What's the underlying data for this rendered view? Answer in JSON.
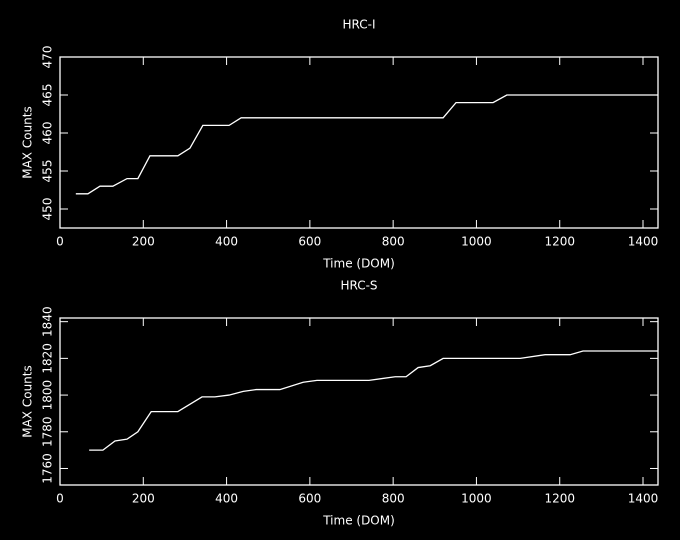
{
  "chart_data": [
    {
      "type": "line",
      "title": "HRC-I",
      "x_label": "Time (DOM)",
      "y_label": "MAX Counts",
      "color": "#ffffff",
      "x": [
        38,
        67,
        96,
        127,
        161,
        187,
        216,
        283,
        312,
        343,
        406,
        435,
        920,
        951,
        1040,
        1073,
        1436
      ],
      "values": [
        452,
        452,
        453,
        453,
        454,
        454,
        457,
        457,
        458,
        461,
        461,
        462,
        462,
        464,
        464,
        465,
        465
      ],
      "xlim": [
        0,
        1436
      ],
      "xticks": [
        0,
        200,
        400,
        600,
        800,
        1000,
        1200,
        1400
      ],
      "ylim": [
        447.5,
        470
      ],
      "yticks": [
        450,
        455,
        460,
        465,
        470
      ]
    },
    {
      "type": "line",
      "title": "HRC-S",
      "x_label": "Time (DOM)",
      "y_label": "MAX Counts",
      "color": "#ffffff",
      "x": [
        70,
        103,
        132,
        161,
        187,
        219,
        283,
        341,
        372,
        406,
        440,
        471,
        528,
        584,
        617,
        742,
        805,
        831,
        860,
        889,
        920,
        1105,
        1165,
        1225,
        1256,
        1436
      ],
      "values": [
        1770,
        1770,
        1775,
        1776,
        1780,
        1791,
        1791,
        1799,
        1799,
        1800,
        1802,
        1803,
        1803,
        1807,
        1808,
        1808,
        1810,
        1810,
        1815,
        1816,
        1820,
        1820,
        1822,
        1822,
        1824,
        1824
      ],
      "xlim": [
        0,
        1436
      ],
      "xticks": [
        0,
        200,
        400,
        600,
        800,
        1000,
        1200,
        1400
      ],
      "ylim": [
        1751,
        1842
      ],
      "yticks": [
        1760,
        1780,
        1800,
        1820,
        1840
      ]
    }
  ]
}
